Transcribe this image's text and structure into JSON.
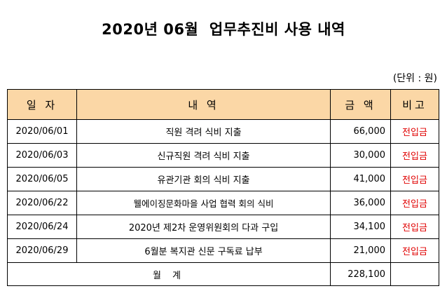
{
  "document": {
    "title": "2020년 06월  업무추진비 사용 내역",
    "unit_label": "(단위 : 원)"
  },
  "table": {
    "headers": {
      "date": "일 자",
      "description": "내  역",
      "amount": "금  액",
      "note": "비고"
    },
    "rows": [
      {
        "date": "2020/06/01",
        "description": "직원 격려 식비 지출",
        "amount": "66,000",
        "note": "전입금"
      },
      {
        "date": "2020/06/03",
        "description": "신규직원 격려 식비 지출",
        "amount": "30,000",
        "note": "전입금"
      },
      {
        "date": "2020/06/05",
        "description": "유관기관 회의 식비 지출",
        "amount": "41,000",
        "note": "전입금"
      },
      {
        "date": "2020/06/22",
        "description": "웰에이징문화마을 사업 협력 회의 식비",
        "amount": "36,000",
        "note": "전입금"
      },
      {
        "date": "2020/06/24",
        "description": "2020년 제2차 운영위원회의 다과 구입",
        "amount": "34,100",
        "note": "전입금"
      },
      {
        "date": "2020/06/29",
        "description": "6월분 복지관 신문 구독료 납부",
        "amount": "21,000",
        "note": "전입금"
      }
    ],
    "total": {
      "label": "월 계",
      "amount": "228,100",
      "note": ""
    }
  },
  "colors": {
    "header_bg": "#fbd7a6",
    "note_text": "#e00000"
  }
}
